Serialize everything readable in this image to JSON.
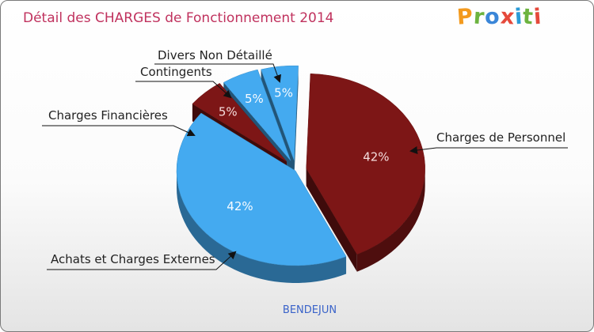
{
  "logo": {
    "letters": [
      "P",
      "r",
      "o",
      "x",
      "i",
      "t",
      "i"
    ],
    "colors": [
      "#f39a1e",
      "#6cb33f",
      "#3a86d8",
      "#e5493b",
      "#2a9bd7",
      "#6cb33f",
      "#e5493b"
    ]
  },
  "chart_data": {
    "type": "pie",
    "title": "Détail des CHARGES de Fonctionnement 2014",
    "footer": "BENDEJUN",
    "slices": [
      {
        "name": "Charges de Personnel",
        "value": 42,
        "label": "42%",
        "color": "#7d1616",
        "exploded": true
      },
      {
        "name": "Achats et Charges Externes",
        "value": 42,
        "label": "42%",
        "color": "#44aaf0",
        "exploded": false
      },
      {
        "name": "Charges Financières",
        "value": 5,
        "label": "5%",
        "color": "#7d1616",
        "exploded": true
      },
      {
        "name": "Contingents",
        "value": 5,
        "label": "5%",
        "color": "#44aaf0",
        "exploded": true
      },
      {
        "name": "Divers Non Détaillé",
        "value": 5,
        "label": "5%",
        "color": "#44aaf0",
        "exploded": true
      }
    ]
  }
}
